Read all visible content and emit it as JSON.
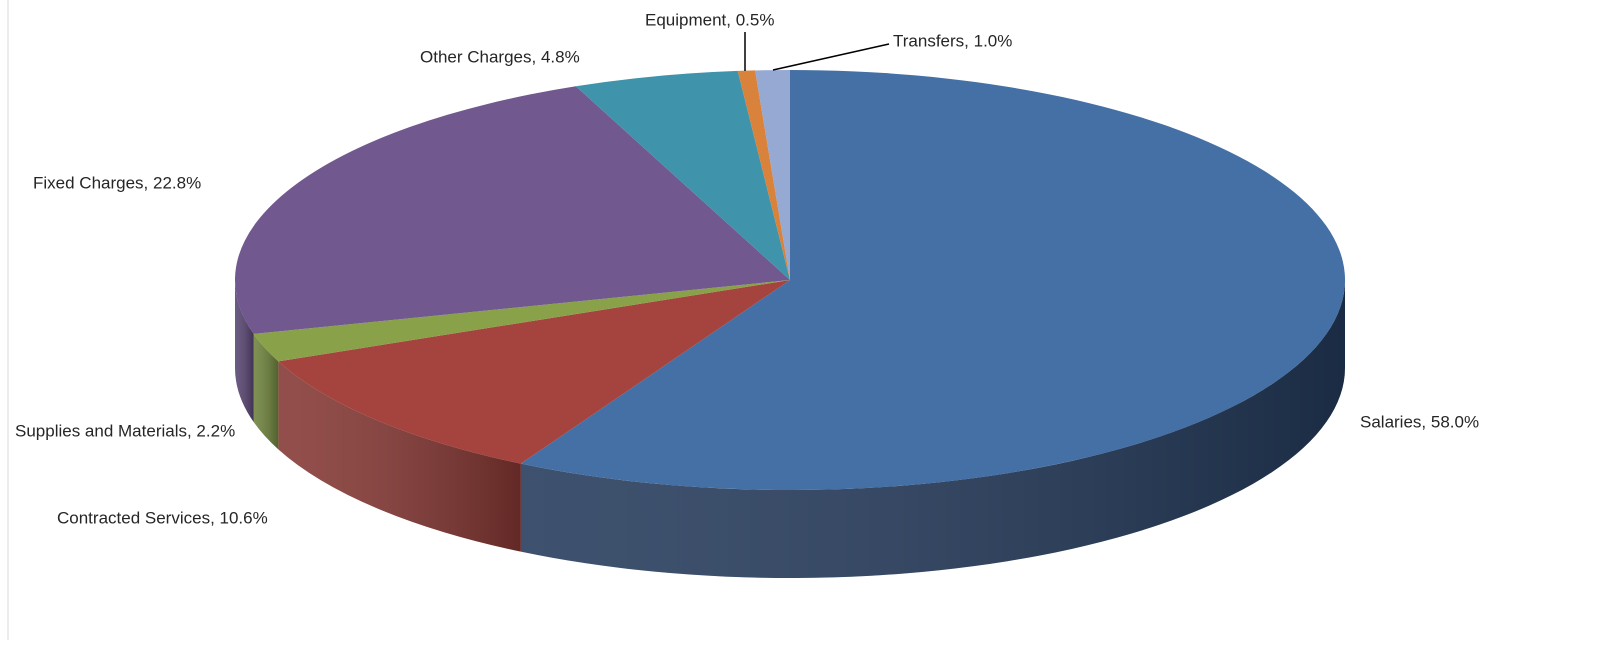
{
  "chart_data": {
    "type": "pie3d",
    "values": [
      58.0,
      10.6,
      2.2,
      22.8,
      4.8,
      0.5,
      1.0
    ],
    "value_labels": [
      "Salaries, 58.0%",
      "Contracted Services, 10.6%",
      "Supplies and Materials, 2.2%",
      "Fixed Charges, 22.8%",
      "Other Charges, 4.8%",
      "Equipment, 0.5%",
      "Transfers, 1.0%"
    ],
    "colors": [
      "#4570a5",
      "#a5433f",
      "#89a24a",
      "#71588f",
      "#3f93ab",
      "#d9823b",
      "#95a9d2"
    ],
    "side_colors": [
      "#23395a",
      "#843632",
      "#6d813b",
      "#574370",
      "#2f7185",
      "#a9652d",
      "#7384a6"
    ]
  }
}
